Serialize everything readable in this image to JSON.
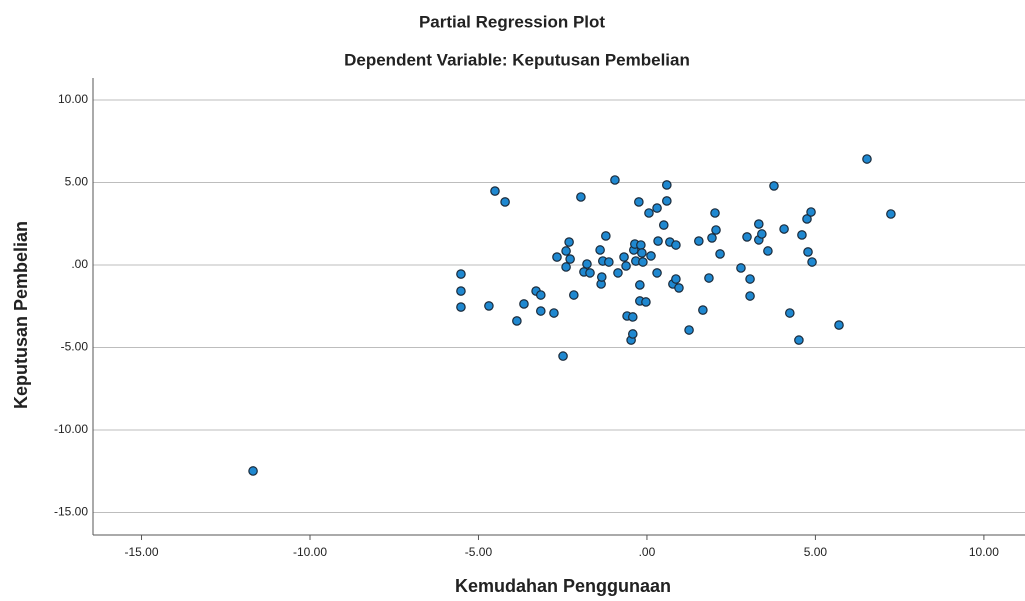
{
  "chart_data": {
    "type": "scatter",
    "title": "Partial Regression Plot",
    "subtitle": "Dependent Variable: Keputusan Pembelian",
    "x_label": "Kemudahan Penggunaan",
    "y_label": "Keputusan Pembelian",
    "color": "#1f88d0",
    "edge_color": "#1a2a3a",
    "grid": true,
    "xlim": [
      -16.44,
      11.22
    ],
    "ylim": [
      -16.36,
      11.33
    ],
    "xticks": [
      {
        "value": -15,
        "label": "-15.00"
      },
      {
        "value": -10,
        "label": "-10.00"
      },
      {
        "value": -5,
        "label": "-5.00"
      },
      {
        "value": 0,
        "label": ".00"
      },
      {
        "value": 5,
        "label": "5.00"
      },
      {
        "value": 10,
        "label": "10.00"
      }
    ],
    "yticks": [
      {
        "value": -15,
        "label": "-15.00"
      },
      {
        "value": -10,
        "label": "-10.00"
      },
      {
        "value": -5,
        "label": "-5.00"
      },
      {
        "value": 0,
        "label": ".00"
      },
      {
        "value": 5,
        "label": "5.00"
      },
      {
        "value": 10,
        "label": "10.00"
      }
    ],
    "x": [
      -11.69,
      -5.52,
      -5.52,
      -5.52,
      -4.69,
      -4.51,
      -4.21,
      -3.86,
      -3.65,
      -3.29,
      -3.15,
      -3.15,
      -2.76,
      -2.67,
      -2.49,
      -2.4,
      -2.31,
      -2.4,
      -2.28,
      -2.17,
      -1.96,
      -1.87,
      -1.78,
      -1.69,
      -1.39,
      -1.36,
      -1.34,
      -1.31,
      -1.22,
      -1.13,
      -0.95,
      -0.86,
      -0.68,
      -0.62,
      -0.59,
      -0.47,
      -0.42,
      -0.42,
      -0.39,
      -0.36,
      -0.33,
      -0.24,
      -0.21,
      -0.21,
      -0.18,
      -0.15,
      -0.12,
      -0.03,
      0.06,
      0.12,
      0.3,
      0.3,
      0.33,
      0.5,
      0.59,
      0.59,
      0.68,
      0.77,
      0.86,
      0.86,
      0.95,
      1.25,
      1.54,
      1.66,
      1.84,
      1.93,
      2.02,
      2.05,
      2.17,
      2.79,
      2.97,
      3.06,
      3.06,
      3.32,
      3.32,
      3.41,
      3.59,
      3.77,
      4.07,
      4.24,
      4.51,
      4.6,
      4.75,
      4.78,
      4.87,
      4.9,
      5.7,
      6.53,
      7.24
    ],
    "y": [
      -12.48,
      -0.55,
      -1.58,
      -2.55,
      -2.48,
      4.48,
      3.82,
      -3.39,
      -2.36,
      -1.58,
      -1.82,
      -2.79,
      -2.91,
      0.48,
      -5.52,
      0.85,
      1.39,
      -0.12,
      0.36,
      -1.82,
      4.12,
      -0.42,
      0.06,
      -0.48,
      0.91,
      -1.15,
      -0.73,
      0.24,
      1.76,
      0.18,
      5.15,
      -0.48,
      0.48,
      -0.06,
      -3.09,
      -4.55,
      -3.15,
      -4.18,
      0.91,
      1.27,
      0.24,
      3.82,
      -1.21,
      -2.18,
      1.21,
      0.73,
      0.18,
      -2.24,
      3.15,
      0.55,
      3.45,
      -0.48,
      1.45,
      2.42,
      4.85,
      3.88,
      1.39,
      -1.15,
      1.21,
      -0.85,
      -1.39,
      -3.94,
      1.45,
      -2.73,
      -0.79,
      1.64,
      3.15,
      2.12,
      0.67,
      -0.18,
      1.7,
      -0.85,
      -1.88,
      2.48,
      1.52,
      1.88,
      0.85,
      4.79,
      2.18,
      -2.91,
      -4.55,
      1.82,
      2.79,
      0.79,
      3.21,
      0.18,
      -3.64,
      6.42,
      3.09
    ]
  }
}
